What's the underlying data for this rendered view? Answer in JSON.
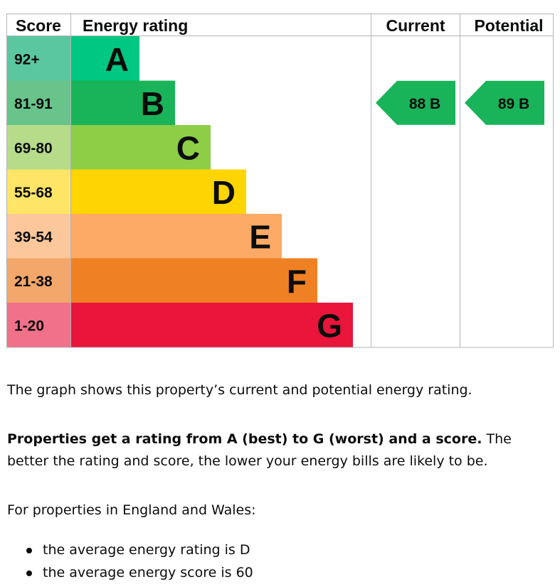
{
  "chart_data": {
    "type": "bar",
    "headers": {
      "score": "Score",
      "rating": "Energy rating",
      "current": "Current",
      "potential": "Potential"
    },
    "bands": [
      {
        "letter": "A",
        "range": "92+",
        "color": "#00c781",
        "score_color": "#5bc7a0"
      },
      {
        "letter": "B",
        "range": "81-91",
        "color": "#19b459",
        "score_color": "#68c48a"
      },
      {
        "letter": "C",
        "range": "69-80",
        "color": "#8dce46",
        "score_color": "#b6dc8a"
      },
      {
        "letter": "D",
        "range": "55-68",
        "color": "#ffd500",
        "score_color": "#ffe566"
      },
      {
        "letter": "E",
        "range": "39-54",
        "color": "#fcaa65",
        "score_color": "#fcc89b"
      },
      {
        "letter": "F",
        "range": "21-38",
        "color": "#ef8023",
        "score_color": "#f4a76a"
      },
      {
        "letter": "G",
        "range": "1-20",
        "color": "#e9153b",
        "score_color": "#f1718a"
      }
    ],
    "current": {
      "score": 88,
      "letter": "B",
      "label": "88  B",
      "color": "#19b459"
    },
    "potential": {
      "score": 89,
      "letter": "B",
      "label": "89  B",
      "color": "#19b459"
    }
  },
  "text": {
    "summary": "The graph shows this property’s current and potential energy rating.",
    "rating_bold": "Properties get a rating from A (best) to G (worst) and a score.",
    "rating_rest": " The better the rating and score, the lower your energy bills are likely to be.",
    "region": "For properties in England and Wales:",
    "bullets": [
      "the average energy rating is D",
      "the average energy score is 60"
    ]
  }
}
